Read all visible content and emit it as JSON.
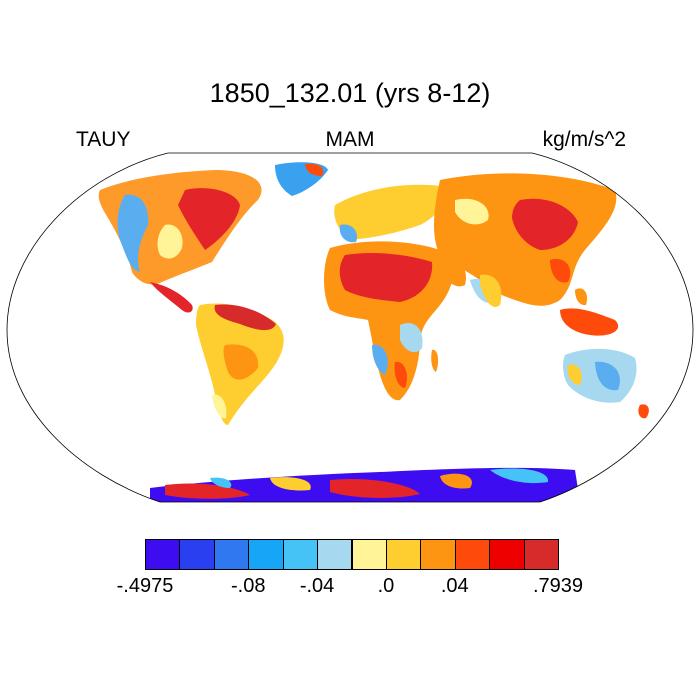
{
  "title": "1850_132.01 (yrs 8-12)",
  "left_label": "TAUY",
  "center_label": "MAM",
  "right_label": "kg/m/s^2",
  "projection": "Robinson",
  "colorbar": {
    "colors": [
      "#3d0cf0",
      "#2a3ff0",
      "#2f78ef",
      "#17a6f7",
      "#45c2f6",
      "#a6d8f0",
      "#fff598",
      "#fecd2f",
      "#fd9512",
      "#fe4b0c",
      "#ee0000",
      "#d72b2b"
    ],
    "labels": [
      {
        "text": "-.4975",
        "boundary": 0
      },
      {
        "text": "-.08",
        "boundary": 3
      },
      {
        "text": "-.04",
        "boundary": 5
      },
      {
        "text": ".0",
        "boundary": 7
      },
      {
        "text": ".04",
        "boundary": 9
      },
      {
        "text": ".7939",
        "boundary": 12
      }
    ]
  }
}
